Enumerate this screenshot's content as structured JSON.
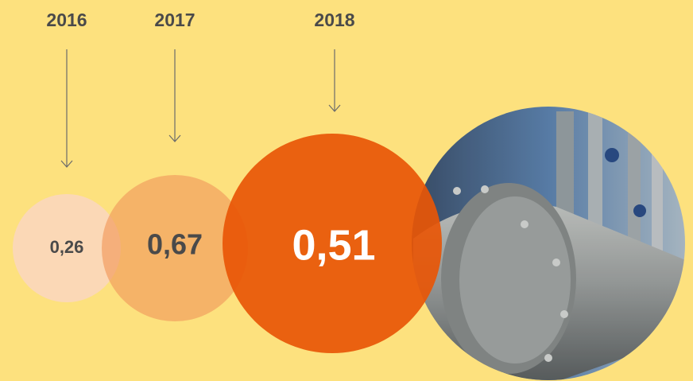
{
  "items": [
    {
      "year": "2016",
      "value": "0,26"
    },
    {
      "year": "2017",
      "value": "0,67"
    },
    {
      "year": "2018",
      "value": "0,51"
    }
  ]
}
